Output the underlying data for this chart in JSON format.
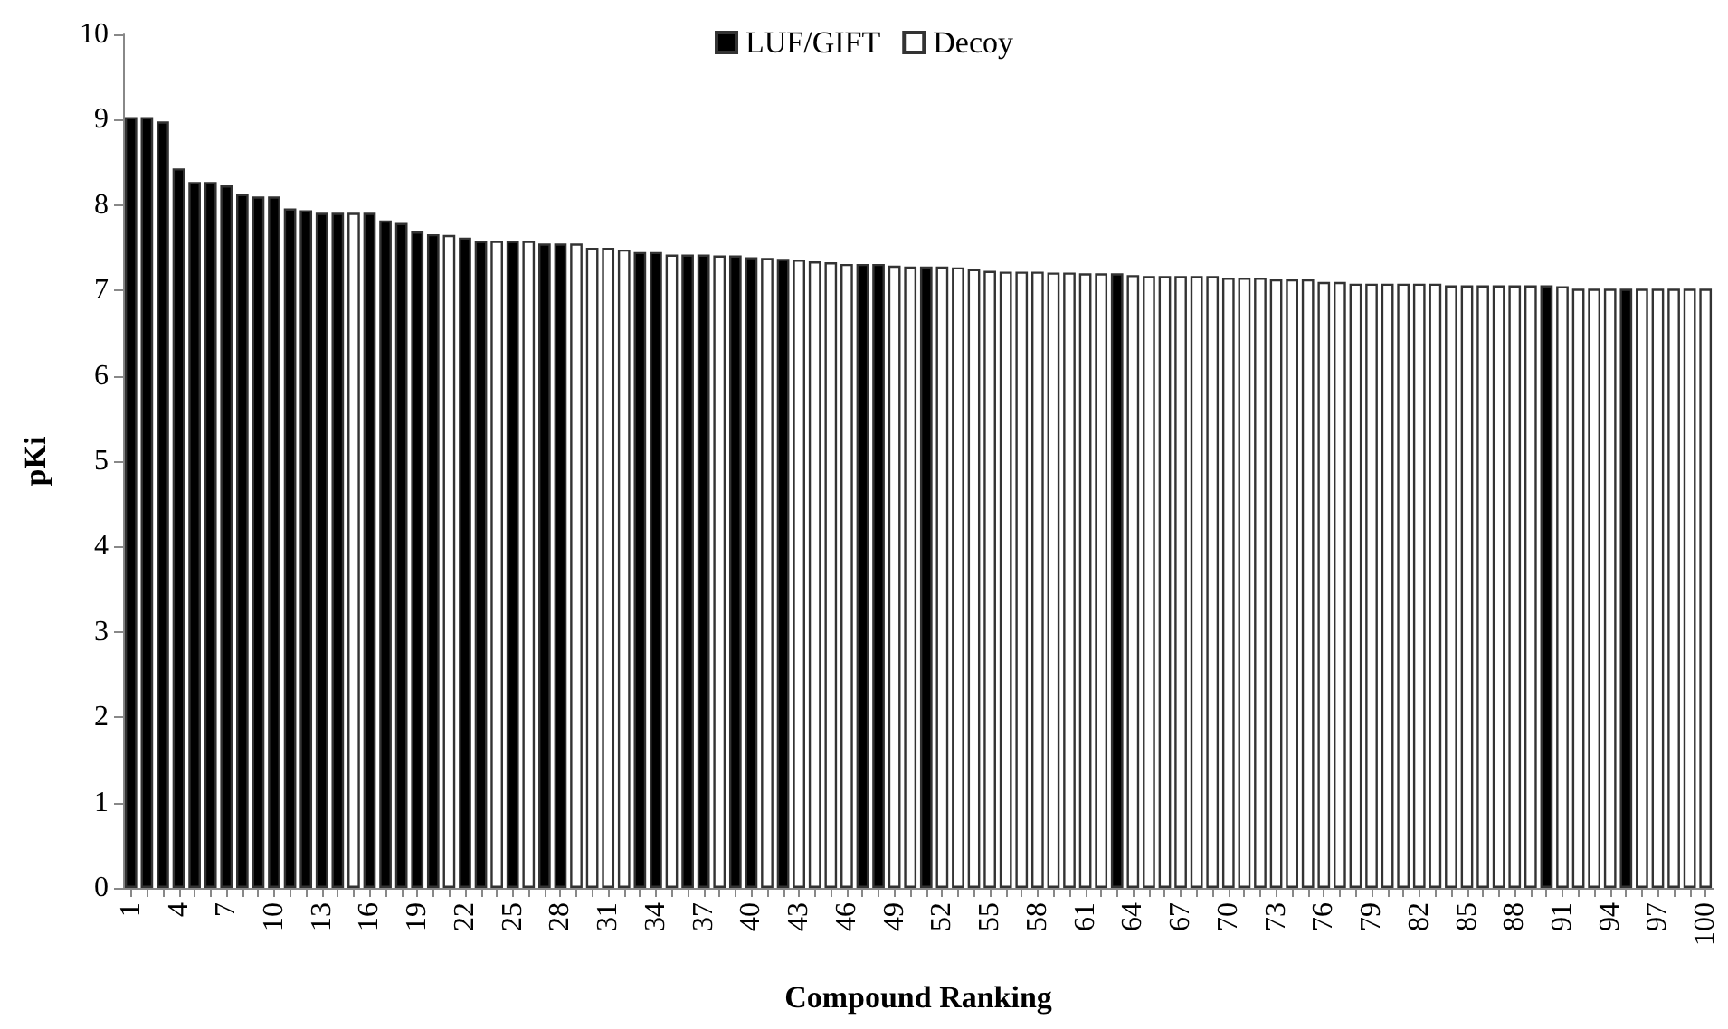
{
  "chart_data": {
    "type": "bar",
    "xlabel": "Compound Ranking",
    "ylabel": "pKi",
    "categories": [
      "1",
      null,
      null,
      "4",
      null,
      null,
      "7",
      null,
      null,
      "10",
      null,
      null,
      "13",
      null,
      null,
      "16",
      null,
      null,
      "19",
      null,
      null,
      "22",
      null,
      null,
      "25",
      null,
      null,
      "28",
      null,
      null,
      "31",
      null,
      null,
      "34",
      null,
      null,
      "37",
      null,
      null,
      "40",
      null,
      null,
      "43",
      null,
      null,
      "46",
      null,
      null,
      "49",
      null,
      null,
      "52",
      null,
      null,
      "55",
      null,
      null,
      "58",
      null,
      null,
      "61",
      null,
      null,
      "64",
      null,
      null,
      "67",
      null,
      null,
      "70",
      null,
      null,
      "73",
      null,
      null,
      "76",
      null,
      null,
      "79",
      null,
      null,
      "82",
      null,
      null,
      "85",
      null,
      null,
      "88",
      null,
      null,
      "91",
      null,
      null,
      "94",
      null,
      null,
      "97",
      null,
      null,
      "100"
    ],
    "series": [
      {
        "name": "LUF/GIFT",
        "color": "#000000",
        "values": [
          9.03,
          9.03,
          8.98,
          8.43,
          8.27,
          8.27,
          8.23,
          8.13,
          8.1,
          8.1,
          7.96,
          7.94,
          7.91,
          7.91,
          null,
          7.91,
          7.82,
          7.79,
          7.69,
          7.66,
          null,
          7.62,
          7.58,
          null,
          7.58,
          null,
          7.55,
          7.55,
          null,
          null,
          null,
          null,
          7.45,
          7.45,
          null,
          7.42,
          7.42,
          null,
          7.41,
          7.39,
          null,
          7.37,
          null,
          null,
          null,
          null,
          7.31,
          7.31,
          null,
          null,
          7.28,
          null,
          null,
          null,
          null,
          null,
          null,
          null,
          null,
          null,
          null,
          null,
          7.2,
          null,
          null,
          null,
          null,
          null,
          null,
          null,
          null,
          null,
          null,
          null,
          null,
          null,
          null,
          null,
          null,
          null,
          null,
          null,
          null,
          null,
          null,
          null,
          null,
          null,
          null,
          7.06,
          null,
          null,
          null,
          null,
          7.02,
          null,
          null,
          null,
          null,
          null
        ]
      },
      {
        "name": "Decoy",
        "color": "#ffffff",
        "values": [
          null,
          null,
          null,
          null,
          null,
          null,
          null,
          null,
          null,
          null,
          null,
          null,
          null,
          null,
          7.91,
          null,
          null,
          null,
          null,
          null,
          7.65,
          null,
          null,
          7.58,
          null,
          7.58,
          null,
          null,
          7.55,
          7.5,
          7.5,
          7.48,
          null,
          null,
          7.42,
          null,
          null,
          7.41,
          null,
          null,
          7.38,
          null,
          7.36,
          7.34,
          7.33,
          7.31,
          null,
          null,
          7.29,
          7.28,
          null,
          7.28,
          7.27,
          7.25,
          7.23,
          7.22,
          7.22,
          7.22,
          7.21,
          7.21,
          7.2,
          7.2,
          null,
          7.18,
          7.17,
          7.17,
          7.17,
          7.17,
          7.17,
          7.15,
          7.15,
          7.15,
          7.13,
          7.13,
          7.13,
          7.1,
          7.1,
          7.08,
          7.08,
          7.08,
          7.08,
          7.08,
          7.08,
          7.06,
          7.06,
          7.06,
          7.06,
          7.06,
          7.06,
          null,
          7.05,
          7.02,
          7.02,
          7.02,
          null,
          7.02,
          7.02,
          7.02,
          7.02,
          7.02
        ]
      }
    ],
    "stacked": true,
    "ylim": [
      0,
      10
    ],
    "yticks": [
      0,
      1,
      2,
      3,
      4,
      5,
      6,
      7,
      8,
      9,
      10
    ],
    "legend": "top"
  }
}
